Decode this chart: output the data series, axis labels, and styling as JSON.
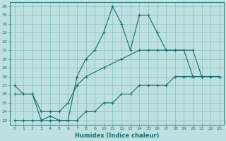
{
  "xlabel": "Humidex (Indice chaleur)",
  "bg_color": "#bde0e0",
  "line_color": "#1a6b6b",
  "xlim": [
    -0.5,
    23.5
  ],
  "ylim": [
    22.5,
    36.5
  ],
  "yticks": [
    23,
    24,
    25,
    26,
    27,
    28,
    29,
    30,
    31,
    32,
    33,
    34,
    35,
    36
  ],
  "xticks": [
    0,
    1,
    2,
    3,
    4,
    5,
    6,
    7,
    8,
    9,
    10,
    11,
    12,
    13,
    14,
    15,
    16,
    17,
    18,
    19,
    20,
    21,
    22,
    23
  ],
  "line1_x": [
    0,
    1,
    2,
    3,
    4,
    5,
    6,
    7,
    8,
    9,
    10,
    11,
    12,
    13,
    14,
    15,
    16,
    17,
    18,
    19,
    20,
    21,
    22,
    23
  ],
  "line1_y": [
    27,
    26,
    26,
    23,
    23.5,
    23,
    23,
    28,
    30,
    31,
    33,
    36,
    34,
    31,
    35,
    35,
    33,
    31,
    31,
    31,
    28,
    28,
    28,
    28
  ],
  "line2_x": [
    0,
    2,
    3,
    4,
    5,
    6,
    7,
    8,
    10,
    12,
    14,
    15,
    16,
    17,
    18,
    20,
    21,
    22,
    23
  ],
  "line2_y": [
    26,
    26,
    24,
    24,
    24,
    25,
    27,
    28,
    29,
    30,
    31,
    31,
    31,
    31,
    31,
    31,
    28,
    28,
    28
  ],
  "line3_x": [
    0,
    1,
    2,
    3,
    4,
    5,
    6,
    7,
    8,
    9,
    10,
    11,
    12,
    13,
    14,
    15,
    16,
    17,
    18,
    19,
    20,
    21,
    22,
    23
  ],
  "line3_y": [
    23,
    23,
    23,
    23,
    23,
    23,
    23,
    23,
    24,
    24,
    25,
    25,
    26,
    26,
    27,
    27,
    27,
    27,
    28,
    28,
    28,
    28,
    28,
    28
  ]
}
